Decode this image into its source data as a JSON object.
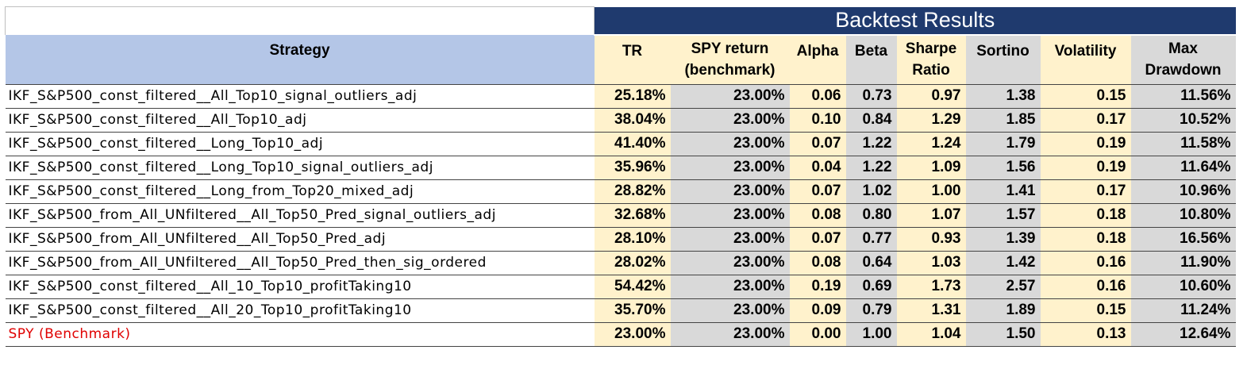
{
  "banner": "Backtest Results",
  "headers": {
    "strategy": "Strategy",
    "tr": "TR",
    "spy_1": "SPY return",
    "spy_2": "(benchmark)",
    "alpha": "Alpha",
    "beta": "Beta",
    "sharpe_1": "Sharpe",
    "sharpe_2": "Ratio",
    "sortino": "Sortino",
    "volatility": "Volatility",
    "maxdd_1": "Max",
    "maxdd_2": "Drawdown"
  },
  "rows": [
    {
      "name": "IKF_S&P500_const_filtered__All_Top10_signal_outliers_adj",
      "tr": "25.18%",
      "spy": "23.00%",
      "alpha": "0.06",
      "beta": "0.73",
      "sharpe": "0.97",
      "sortino": "1.38",
      "volatility": "0.15",
      "maxdd": "11.56%"
    },
    {
      "name": "IKF_S&P500_const_filtered__All_Top10_adj",
      "tr": "38.04%",
      "spy": "23.00%",
      "alpha": "0.10",
      "beta": "0.84",
      "sharpe": "1.29",
      "sortino": "1.85",
      "volatility": "0.17",
      "maxdd": "10.52%"
    },
    {
      "name": "IKF_S&P500_const_filtered__Long_Top10_adj",
      "tr": "41.40%",
      "spy": "23.00%",
      "alpha": "0.07",
      "beta": "1.22",
      "sharpe": "1.24",
      "sortino": "1.79",
      "volatility": "0.19",
      "maxdd": "11.58%"
    },
    {
      "name": "IKF_S&P500_const_filtered__Long_Top10_signal_outliers_adj",
      "tr": "35.96%",
      "spy": "23.00%",
      "alpha": "0.04",
      "beta": "1.22",
      "sharpe": "1.09",
      "sortino": "1.56",
      "volatility": "0.19",
      "maxdd": "11.64%"
    },
    {
      "name": "IKF_S&P500_const_filtered__Long_from_Top20_mixed_adj",
      "tr": "28.82%",
      "spy": "23.00%",
      "alpha": "0.07",
      "beta": "1.02",
      "sharpe": "1.00",
      "sortino": "1.41",
      "volatility": "0.17",
      "maxdd": "10.96%"
    },
    {
      "name": "IKF_S&P500_from_All_UNfiltered__All_Top50_Pred_signal_outliers_adj",
      "tr": "32.68%",
      "spy": "23.00%",
      "alpha": "0.08",
      "beta": "0.80",
      "sharpe": "1.07",
      "sortino": "1.57",
      "volatility": "0.18",
      "maxdd": "10.80%"
    },
    {
      "name": "IKF_S&P500_from_All_UNfiltered__All_Top50_Pred_adj",
      "tr": "28.10%",
      "spy": "23.00%",
      "alpha": "0.07",
      "beta": "0.77",
      "sharpe": "0.93",
      "sortino": "1.39",
      "volatility": "0.18",
      "maxdd": "16.56%"
    },
    {
      "name": "IKF_S&P500_from_All_UNfiltered__All_Top50_Pred_then_sig_ordered",
      "tr": "28.02%",
      "spy": "23.00%",
      "alpha": "0.08",
      "beta": "0.64",
      "sharpe": "1.03",
      "sortino": "1.42",
      "volatility": "0.16",
      "maxdd": "11.90%"
    },
    {
      "name": "IKF_S&P500_const_filtered__All_10_Top10_profitTaking10",
      "tr": "54.42%",
      "spy": "23.00%",
      "alpha": "0.19",
      "beta": "0.69",
      "sharpe": "1.73",
      "sortino": "2.57",
      "volatility": "0.16",
      "maxdd": "10.60%"
    },
    {
      "name": "IKF_S&P500_const_filtered__All_20_Top10_profitTaking10",
      "tr": "35.70%",
      "spy": "23.00%",
      "alpha": "0.09",
      "beta": "0.79",
      "sharpe": "1.31",
      "sortino": "1.89",
      "volatility": "0.15",
      "maxdd": "11.24%"
    },
    {
      "name": "SPY (Benchmark)",
      "tr": "23.00%",
      "spy": "23.00%",
      "alpha": "0.00",
      "beta": "1.00",
      "sharpe": "1.04",
      "sortino": "1.50",
      "volatility": "0.13",
      "maxdd": "12.64%",
      "highlight": true
    }
  ],
  "colors": {
    "banner_bg": "#1f3a6e",
    "strategy_header_bg": "#b4c6e7",
    "yellow_col_bg": "#fff2cc",
    "gray_col_bg": "#d9d9d9",
    "benchmark_text": "#e00000"
  }
}
